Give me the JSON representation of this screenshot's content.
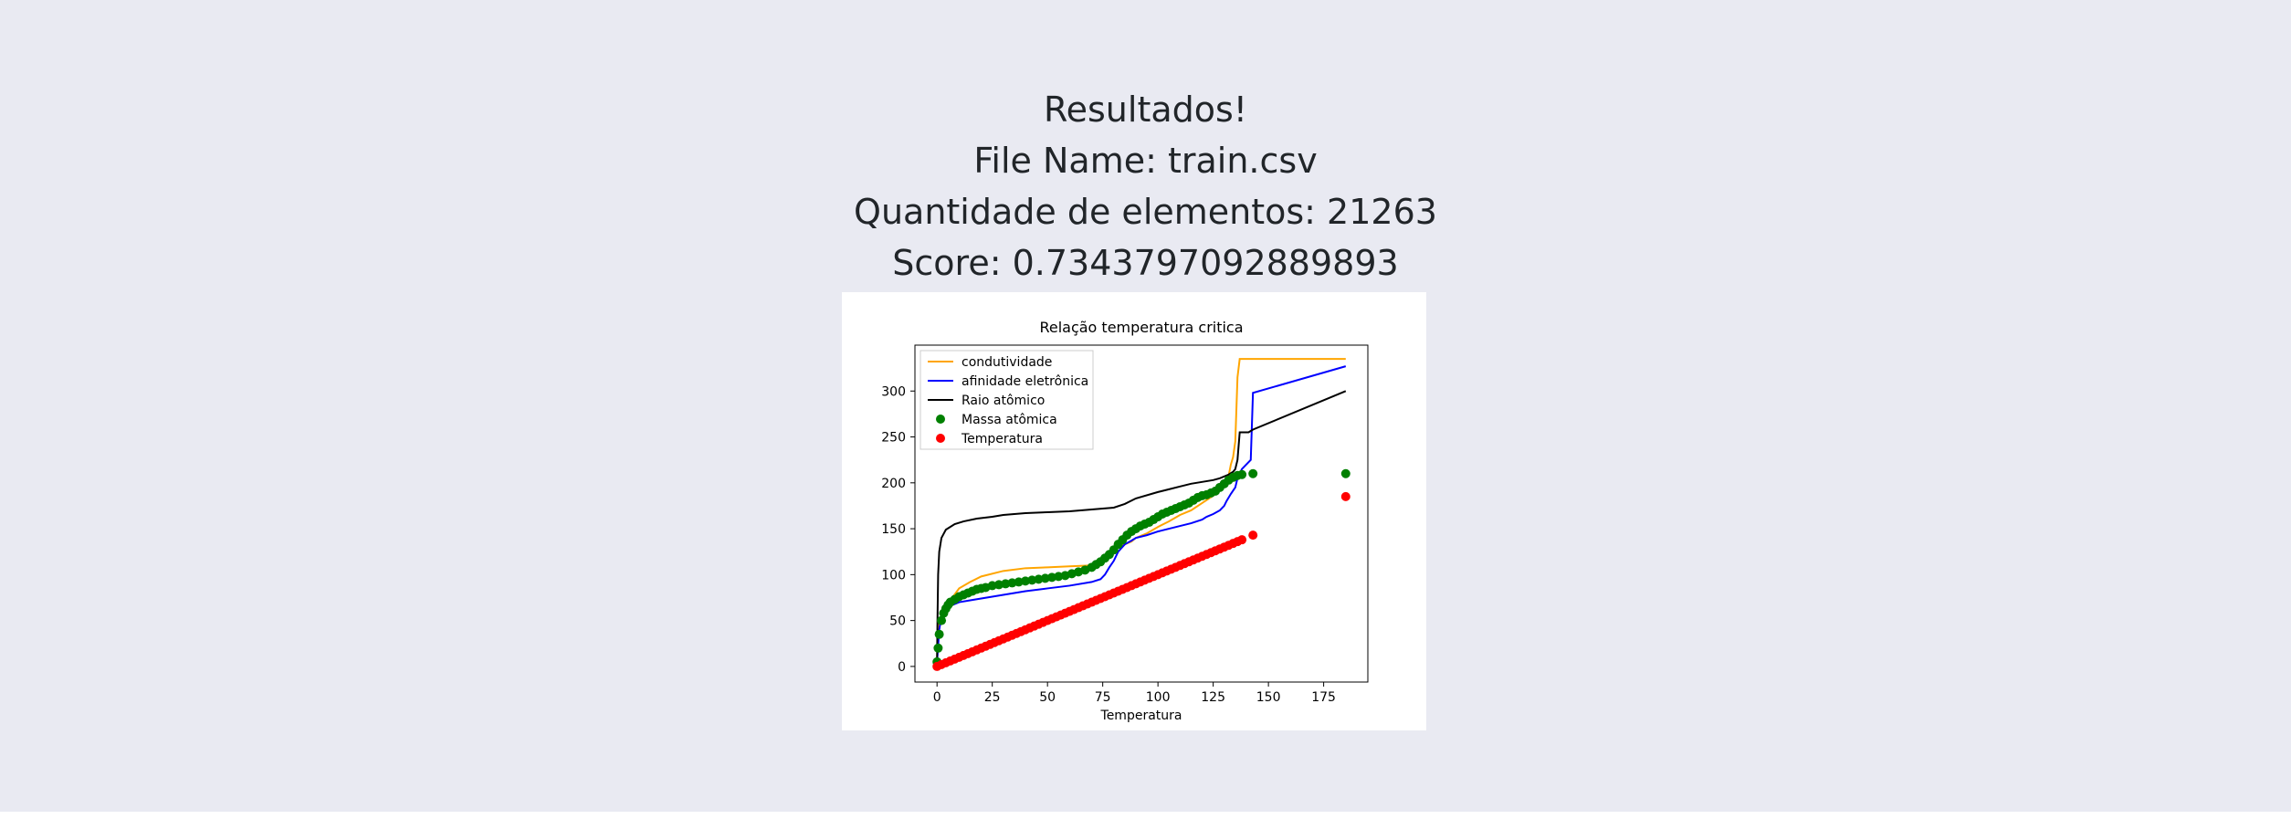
{
  "header": {
    "title": "Resultados!",
    "file_name": "File Name: train.csv",
    "count": "Quantidade de elementos: 21263",
    "score": "Score: 0.7343797092889893"
  },
  "colors": {
    "background": "#e9eaf2",
    "text": "#212529",
    "condutividade": "#ffa500",
    "afinidade": "#0000ff",
    "raio": "#000000",
    "massa": "#008000",
    "temperatura": "#ff0000"
  },
  "chart_data": {
    "type": "line",
    "title": "Relação temperatura critica",
    "xlabel": "Temperatura",
    "ylabel": "",
    "xlim": [
      -10,
      195
    ],
    "ylim": [
      -17,
      350
    ],
    "xticks": [
      0,
      25,
      50,
      75,
      100,
      125,
      150,
      175
    ],
    "yticks": [
      0,
      50,
      100,
      150,
      200,
      250,
      300
    ],
    "grid": false,
    "legend": "upper-left",
    "series": [
      {
        "name": "condutividade",
        "kind": "line",
        "color": "#ffa500",
        "x": [
          0,
          0.3,
          1,
          3,
          6,
          10,
          15,
          20,
          30,
          40,
          50,
          60,
          70,
          72,
          75,
          78,
          80,
          85,
          88,
          90,
          95,
          100,
          105,
          110,
          115,
          120,
          125,
          128,
          130,
          132,
          133,
          134,
          135,
          136,
          137,
          185
        ],
        "y": [
          5,
          30,
          50,
          60,
          72,
          85,
          92,
          98,
          104,
          107,
          108,
          109,
          110,
          112,
          118,
          124,
          128,
          133,
          136,
          140,
          145,
          152,
          158,
          165,
          170,
          178,
          186,
          192,
          198,
          208,
          220,
          228,
          245,
          315,
          335,
          335
        ]
      },
      {
        "name": "afinidade eletrônica",
        "kind": "line",
        "color": "#0000ff",
        "x": [
          0,
          0.3,
          1,
          2,
          4,
          6,
          10,
          15,
          20,
          25,
          30,
          40,
          50,
          60,
          70,
          74,
          76,
          78,
          80,
          82,
          85,
          88,
          90,
          95,
          100,
          105,
          110,
          115,
          120,
          122,
          125,
          128,
          130,
          131,
          133,
          135,
          136,
          137,
          138,
          140,
          142,
          143,
          185
        ],
        "y": [
          5,
          15,
          40,
          55,
          62,
          66,
          70,
          72,
          74,
          76,
          78,
          82,
          85,
          88,
          92,
          95,
          100,
          108,
          115,
          125,
          133,
          137,
          140,
          143,
          147,
          150,
          153,
          156,
          160,
          163,
          166,
          170,
          175,
          180,
          188,
          195,
          205,
          210,
          215,
          220,
          225,
          298,
          327
        ]
      },
      {
        "name": "Raio atômico",
        "kind": "line",
        "color": "#000000",
        "x": [
          0,
          0.2,
          0.5,
          1,
          2,
          4,
          8,
          12,
          18,
          25,
          30,
          40,
          50,
          60,
          70,
          80,
          85,
          90,
          100,
          105,
          110,
          115,
          120,
          125,
          128,
          130,
          132,
          134,
          135,
          136,
          137,
          138,
          141,
          143,
          185
        ],
        "y": [
          5,
          50,
          100,
          125,
          140,
          149,
          155,
          158,
          161,
          163,
          165,
          167,
          168,
          169,
          171,
          173,
          177,
          183,
          190,
          193,
          196,
          199,
          201,
          203,
          205,
          207,
          209,
          212,
          215,
          225,
          255,
          255,
          255,
          258,
          300
        ]
      },
      {
        "name": "Massa atômica",
        "kind": "scatter",
        "color": "#008000",
        "x": [
          0,
          0.5,
          1,
          2,
          3,
          4,
          5,
          6,
          8,
          10,
          12,
          14,
          16,
          18,
          20,
          22,
          25,
          28,
          31,
          34,
          37,
          40,
          43,
          46,
          49,
          52,
          55,
          58,
          61,
          64,
          67,
          70,
          72,
          74,
          76,
          78,
          80,
          82,
          84,
          86,
          88,
          90,
          92,
          94,
          96,
          98,
          100,
          102,
          104,
          106,
          108,
          110,
          112,
          114,
          116,
          118,
          120,
          122,
          124,
          126,
          128,
          130,
          132,
          134,
          136,
          138,
          143,
          185
        ],
        "y": [
          5,
          20,
          35,
          50,
          58,
          63,
          67,
          70,
          73,
          76,
          78,
          80,
          82,
          84,
          85,
          86,
          88,
          89,
          90,
          91,
          92,
          93,
          94,
          95,
          96,
          97,
          98,
          99,
          101,
          103,
          105,
          108,
          111,
          114,
          118,
          122,
          127,
          133,
          138,
          143,
          147,
          150,
          153,
          155,
          157,
          160,
          163,
          166,
          168,
          170,
          172,
          174,
          176,
          178,
          181,
          184,
          186,
          187,
          189,
          191,
          195,
          199,
          203,
          206,
          208,
          209,
          210,
          210
        ]
      },
      {
        "name": "Temperatura",
        "kind": "scatter",
        "color": "#ff0000",
        "x": [
          0,
          2,
          4,
          6,
          8,
          10,
          12,
          14,
          16,
          18,
          20,
          22,
          24,
          26,
          28,
          30,
          32,
          34,
          36,
          38,
          40,
          42,
          44,
          46,
          48,
          50,
          52,
          54,
          56,
          58,
          60,
          62,
          64,
          66,
          68,
          70,
          72,
          74,
          76,
          78,
          80,
          82,
          84,
          86,
          88,
          90,
          92,
          94,
          96,
          98,
          100,
          102,
          104,
          106,
          108,
          110,
          112,
          114,
          116,
          118,
          120,
          122,
          124,
          126,
          128,
          130,
          132,
          134,
          136,
          138,
          143,
          185
        ],
        "y": [
          0,
          2,
          4,
          6,
          8,
          10,
          12,
          14,
          16,
          18,
          20,
          22,
          24,
          26,
          28,
          30,
          32,
          34,
          36,
          38,
          40,
          42,
          44,
          46,
          48,
          50,
          52,
          54,
          56,
          58,
          60,
          62,
          64,
          66,
          68,
          70,
          72,
          74,
          76,
          78,
          80,
          82,
          84,
          86,
          88,
          90,
          92,
          94,
          96,
          98,
          100,
          102,
          104,
          106,
          108,
          110,
          112,
          114,
          116,
          118,
          120,
          122,
          124,
          126,
          128,
          130,
          132,
          134,
          136,
          138,
          143,
          185
        ]
      }
    ]
  }
}
